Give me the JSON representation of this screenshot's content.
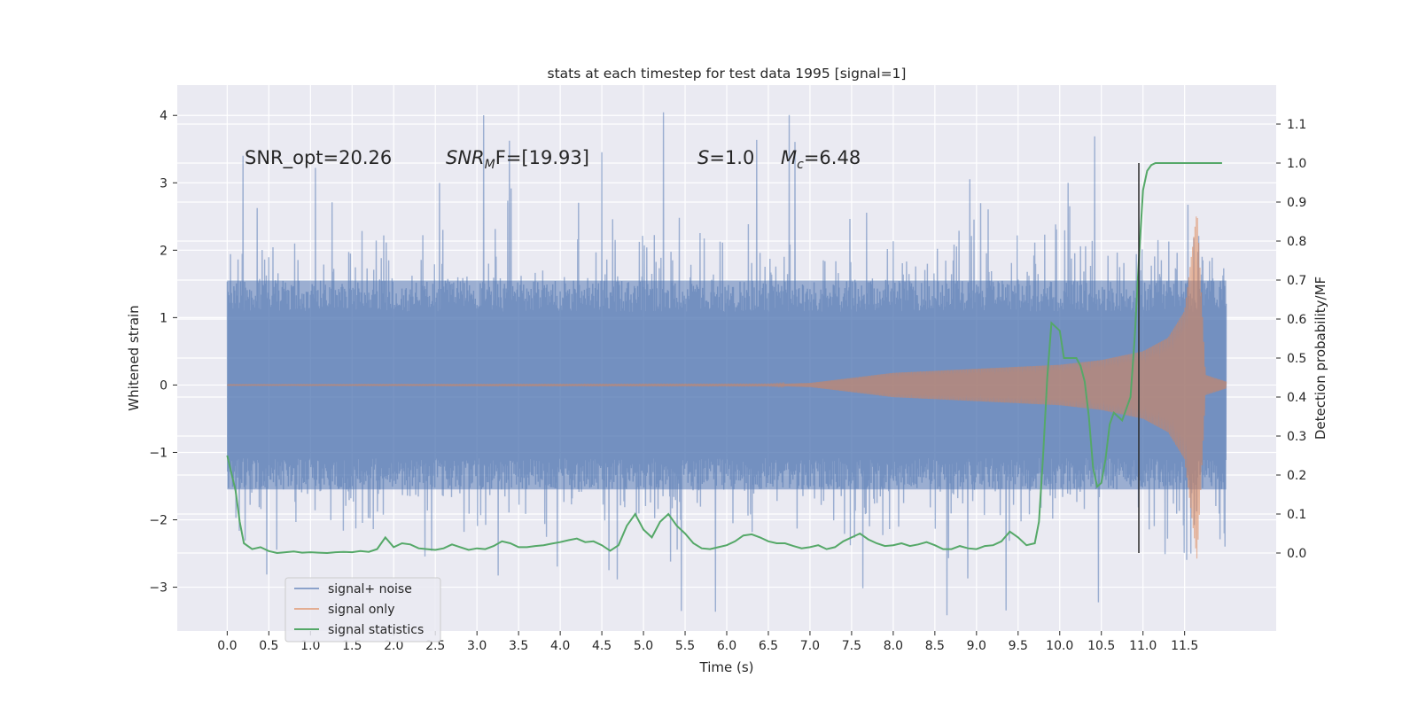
{
  "chart_data": {
    "type": "line",
    "title": "stats at each timestep for test data 1995 [signal=1]",
    "xlabel": "Time (s)",
    "ylabel": "Whitened strain",
    "ylabel_right": "Detection probability/MF",
    "xlim": [
      -0.6,
      12.6
    ],
    "ylim": [
      -3.65,
      4.45
    ],
    "ylim_right": [
      -0.2,
      1.2
    ],
    "x_ticks": [
      "0.0",
      "0.5",
      "1.0",
      "1.5",
      "2.0",
      "2.5",
      "3.0",
      "3.5",
      "4.0",
      "4.5",
      "5.0",
      "5.5",
      "6.0",
      "6.5",
      "7.0",
      "7.5",
      "8.0",
      "8.5",
      "9.0",
      "9.5",
      "10.0",
      "10.5",
      "11.0",
      "11.5"
    ],
    "y_ticks": [
      "−3",
      "−2",
      "−1",
      "0",
      "1",
      "2",
      "3",
      "4"
    ],
    "y_ticks_right": [
      "0.0",
      "0.1",
      "0.2",
      "0.3",
      "0.4",
      "0.5",
      "0.6",
      "0.7",
      "0.8",
      "0.9",
      "1.0",
      "1.1"
    ],
    "annotations": {
      "snr_opt": "SNR_opt=20.26",
      "snr_mf_prefix": "SNR",
      "snr_mf_sub": "M",
      "snr_mf_rest": "F=[19.93]",
      "s_prefix": "S",
      "s_rest": "=1.0",
      "mc_prefix": "M",
      "mc_sub": "c",
      "mc_rest": "=6.48"
    },
    "series": [
      {
        "name": "signal+ noise",
        "color": "#4c72b0",
        "alpha": 0.5,
        "duration": 12.0,
        "envelope": 1.55,
        "noise_sigma": 0.85
      },
      {
        "name": "signal only",
        "color": "#dd8452",
        "alpha": 0.5,
        "description_points": [
          [
            0.0,
            0.005
          ],
          [
            6.5,
            0.01
          ],
          [
            7.0,
            0.03
          ],
          [
            8.0,
            0.18
          ],
          [
            9.0,
            0.24
          ],
          [
            10.0,
            0.3
          ],
          [
            10.5,
            0.37
          ],
          [
            11.0,
            0.5
          ],
          [
            11.3,
            0.7
          ],
          [
            11.5,
            1.1
          ],
          [
            11.65,
            2.6
          ],
          [
            11.75,
            0.15
          ],
          [
            12.0,
            0.05
          ]
        ]
      },
      {
        "name": "signal statistics",
        "color": "#55a868",
        "axis": "right",
        "x": [
          0.0,
          0.1,
          0.15,
          0.2,
          0.3,
          0.4,
          0.5,
          0.6,
          0.7,
          0.8,
          0.9,
          1.0,
          1.1,
          1.2,
          1.3,
          1.4,
          1.5,
          1.6,
          1.7,
          1.8,
          1.9,
          2.0,
          2.1,
          2.2,
          2.3,
          2.4,
          2.5,
          2.6,
          2.7,
          2.8,
          2.9,
          3.0,
          3.1,
          3.2,
          3.3,
          3.4,
          3.5,
          3.6,
          3.7,
          3.8,
          3.9,
          4.0,
          4.1,
          4.2,
          4.3,
          4.4,
          4.5,
          4.6,
          4.7,
          4.8,
          4.9,
          5.0,
          5.1,
          5.2,
          5.3,
          5.4,
          5.5,
          5.6,
          5.7,
          5.8,
          5.9,
          6.0,
          6.1,
          6.2,
          6.3,
          6.4,
          6.5,
          6.6,
          6.7,
          6.8,
          6.9,
          7.0,
          7.1,
          7.2,
          7.3,
          7.4,
          7.5,
          7.6,
          7.7,
          7.8,
          7.9,
          8.0,
          8.1,
          8.2,
          8.3,
          8.4,
          8.5,
          8.6,
          8.7,
          8.8,
          8.9,
          9.0,
          9.1,
          9.2,
          9.3,
          9.4,
          9.5,
          9.6,
          9.7,
          9.75,
          9.8,
          9.85,
          9.9,
          9.95,
          10.0,
          10.05,
          10.1,
          10.15,
          10.2,
          10.25,
          10.3,
          10.35,
          10.4,
          10.45,
          10.5,
          10.55,
          10.6,
          10.65,
          10.7,
          10.75,
          10.8,
          10.85,
          10.9,
          10.95,
          11.0,
          11.05,
          11.1,
          11.15,
          11.2,
          11.3,
          11.5,
          11.7,
          11.95
        ],
        "y": [
          0.25,
          0.16,
          0.08,
          0.025,
          0.01,
          0.015,
          0.005,
          0.0,
          0.002,
          0.004,
          0.001,
          0.002,
          0.001,
          0.0,
          0.002,
          0.003,
          0.002,
          0.005,
          0.003,
          0.01,
          0.04,
          0.015,
          0.025,
          0.022,
          0.012,
          0.01,
          0.008,
          0.012,
          0.022,
          0.015,
          0.008,
          0.012,
          0.01,
          0.018,
          0.03,
          0.025,
          0.015,
          0.015,
          0.018,
          0.02,
          0.024,
          0.028,
          0.033,
          0.037,
          0.028,
          0.03,
          0.02,
          0.006,
          0.02,
          0.07,
          0.1,
          0.06,
          0.04,
          0.08,
          0.1,
          0.07,
          0.05,
          0.025,
          0.012,
          0.01,
          0.015,
          0.02,
          0.03,
          0.045,
          0.048,
          0.04,
          0.03,
          0.025,
          0.025,
          0.018,
          0.012,
          0.015,
          0.02,
          0.01,
          0.015,
          0.03,
          0.04,
          0.05,
          0.035,
          0.025,
          0.018,
          0.02,
          0.025,
          0.018,
          0.022,
          0.028,
          0.02,
          0.01,
          0.01,
          0.018,
          0.012,
          0.01,
          0.018,
          0.02,
          0.03,
          0.055,
          0.04,
          0.02,
          0.025,
          0.08,
          0.25,
          0.45,
          0.59,
          0.58,
          0.57,
          0.5,
          0.5,
          0.5,
          0.5,
          0.48,
          0.44,
          0.35,
          0.22,
          0.17,
          0.18,
          0.24,
          0.33,
          0.36,
          0.35,
          0.34,
          0.37,
          0.4,
          0.55,
          0.75,
          0.93,
          0.98,
          0.995,
          1.0,
          1.0,
          1.0,
          1.0,
          1.0,
          1.0
        ]
      }
    ],
    "vline": {
      "x": 10.95,
      "ymin_right": 0.0,
      "ymax_right": 1.0,
      "color": "#2a2a2a"
    },
    "legend": {
      "placement": "lower-left"
    }
  }
}
